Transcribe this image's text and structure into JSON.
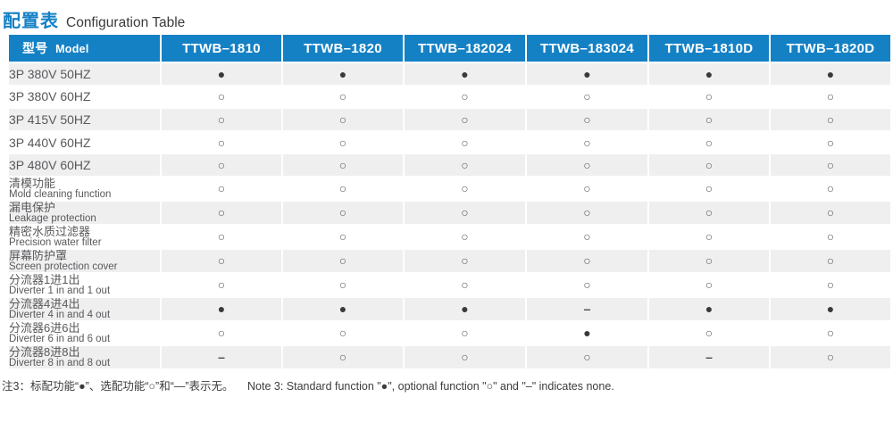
{
  "page_title": {
    "zh": "配置表",
    "en": "Configuration Table"
  },
  "table": {
    "header": {
      "model_zh": "型号",
      "model_en": "Model",
      "columns": [
        "TTWB–1810",
        "TTWB–1820",
        "TTWB–182024",
        "TTWB–183024",
        "TTWB–1810D",
        "TTWB–1820D"
      ]
    },
    "rows": [
      {
        "label_zh": "3P 380V 50HZ",
        "label_en": "",
        "values": [
          "●",
          "●",
          "●",
          "●",
          "●",
          "●"
        ]
      },
      {
        "label_zh": "3P 380V 60HZ",
        "label_en": "",
        "values": [
          "○",
          "○",
          "○",
          "○",
          "○",
          "○"
        ]
      },
      {
        "label_zh": "3P 415V 50HZ",
        "label_en": "",
        "values": [
          "○",
          "○",
          "○",
          "○",
          "○",
          "○"
        ]
      },
      {
        "label_zh": "3P 440V 60HZ",
        "label_en": "",
        "values": [
          "○",
          "○",
          "○",
          "○",
          "○",
          "○"
        ]
      },
      {
        "label_zh": "3P 480V 60HZ",
        "label_en": "",
        "values": [
          "○",
          "○",
          "○",
          "○",
          "○",
          "○"
        ]
      },
      {
        "label_zh": "清模功能",
        "label_en": "Mold cleaning function",
        "values": [
          "○",
          "○",
          "○",
          "○",
          "○",
          "○"
        ]
      },
      {
        "label_zh": "漏电保护",
        "label_en": "Leakage protection",
        "values": [
          "○",
          "○",
          "○",
          "○",
          "○",
          "○"
        ]
      },
      {
        "label_zh": "精密水质过滤器",
        "label_en": "Precision water filter",
        "values": [
          "○",
          "○",
          "○",
          "○",
          "○",
          "○"
        ]
      },
      {
        "label_zh": "屏幕防护罩",
        "label_en": "Screen protection cover",
        "values": [
          "○",
          "○",
          "○",
          "○",
          "○",
          "○"
        ]
      },
      {
        "label_zh": "分流器1进1出",
        "label_en": "Diverter 1 in and 1 out",
        "values": [
          "○",
          "○",
          "○",
          "○",
          "○",
          "○"
        ]
      },
      {
        "label_zh": "分流器4进4出",
        "label_en": "Diverter 4 in and 4 out",
        "values": [
          "●",
          "●",
          "●",
          "–",
          "●",
          "●"
        ]
      },
      {
        "label_zh": "分流器6进6出",
        "label_en": "Diverter 6 in and 6 out",
        "values": [
          "○",
          "○",
          "○",
          "●",
          "○",
          "○"
        ]
      },
      {
        "label_zh": "分流器8进8出",
        "label_en": "Diverter 8 in and 8 out",
        "values": [
          "–",
          "○",
          "○",
          "○",
          "–",
          "○"
        ]
      }
    ]
  },
  "legend": {
    "standard_symbol": "●",
    "optional_symbol": "○",
    "none_symbol": "–"
  },
  "footnote": {
    "zh": "注3：标配功能“●”、选配功能“○”和“—”表示无。",
    "en": "Note 3: Standard function \"●\", optional function \"○\" and \"–\" indicates none."
  },
  "colors": {
    "header_blue": "#1581c5",
    "row_alt_gray": "#efeff0",
    "symbol_dark": "#3a3a3a",
    "label_gray": "#58595b"
  }
}
